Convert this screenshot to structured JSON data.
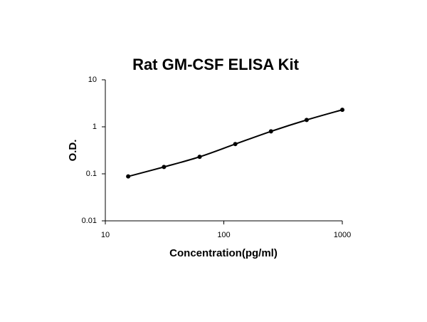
{
  "chart_data": {
    "type": "scatter",
    "title": "Rat GM-CSF ELISA Kit",
    "x_label": "Concentration(pg/ml)",
    "y_label": "O.D.",
    "x": [
      15.6,
      31.25,
      62.5,
      125,
      250,
      500,
      1000
    ],
    "values": [
      0.088,
      0.14,
      0.23,
      0.43,
      0.8,
      1.4,
      2.3
    ],
    "color": "#000000",
    "curve": true,
    "xlim": [
      10,
      1000
    ],
    "ylim": [
      0.01,
      10
    ],
    "xticks": [
      10,
      100,
      1000
    ],
    "yticks": [
      0.01,
      0.1,
      1,
      10
    ],
    "xscale": "log",
    "yscale": "log"
  }
}
